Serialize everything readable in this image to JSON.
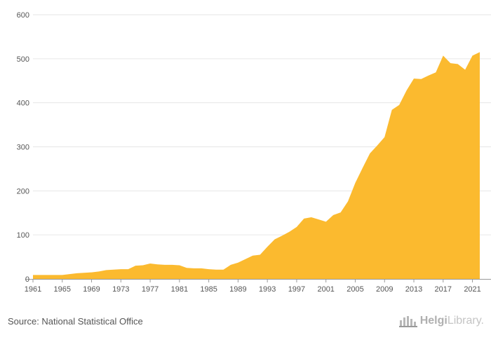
{
  "chart_data": {
    "type": "area",
    "title": "",
    "xlabel": "",
    "ylabel": "",
    "ylim": [
      0,
      600
    ],
    "y_ticks": [
      0,
      100,
      200,
      300,
      400,
      500,
      600
    ],
    "x_ticks": [
      1961,
      1965,
      1969,
      1973,
      1977,
      1981,
      1985,
      1989,
      1993,
      1997,
      2001,
      2005,
      2009,
      2013,
      2017,
      2021
    ],
    "grid": "horizontal",
    "color": "#FBBA2F",
    "x": [
      1961,
      1962,
      1963,
      1964,
      1965,
      1966,
      1967,
      1968,
      1969,
      1970,
      1971,
      1972,
      1973,
      1974,
      1975,
      1976,
      1977,
      1978,
      1979,
      1980,
      1981,
      1982,
      1983,
      1984,
      1985,
      1986,
      1987,
      1988,
      1989,
      1990,
      1991,
      1992,
      1993,
      1994,
      1995,
      1996,
      1997,
      1998,
      1999,
      2000,
      2001,
      2002,
      2003,
      2004,
      2005,
      2006,
      2007,
      2008,
      2009,
      2010,
      2011,
      2012,
      2013,
      2014,
      2015,
      2016,
      2017,
      2018,
      2019,
      2020,
      2021,
      2022
    ],
    "values": [
      9,
      9,
      9,
      9,
      9,
      11,
      13,
      14,
      15,
      17,
      20,
      21,
      22,
      22,
      30,
      31,
      35,
      33,
      32,
      32,
      31,
      25,
      24,
      24,
      22,
      21,
      21,
      32,
      37,
      45,
      53,
      55,
      73,
      90,
      98,
      107,
      118,
      137,
      140,
      135,
      130,
      145,
      151,
      176,
      218,
      252,
      285,
      303,
      322,
      384,
      395,
      428,
      455,
      454,
      462,
      469,
      507,
      490,
      488,
      475,
      507,
      515
    ]
  },
  "axes": {
    "x_tick_labels": [
      "1961",
      "1965",
      "1969",
      "1973",
      "1977",
      "1981",
      "1985",
      "1989",
      "1993",
      "1997",
      "2001",
      "2005",
      "2009",
      "2013",
      "2017",
      "2021"
    ],
    "y_tick_labels": [
      "0",
      "100",
      "200",
      "300",
      "400",
      "500",
      "600"
    ]
  },
  "footer": {
    "source": "Source: National Statistical Office",
    "logo_brand_bold": "Helgi",
    "logo_brand_light": "Library."
  },
  "colors": {
    "area_fill": "#FBBA2F",
    "grid": "#e6e6e6",
    "axis": "#999999",
    "text": "#555555"
  },
  "icons": {
    "logo": "helgi-library-logo-icon"
  }
}
